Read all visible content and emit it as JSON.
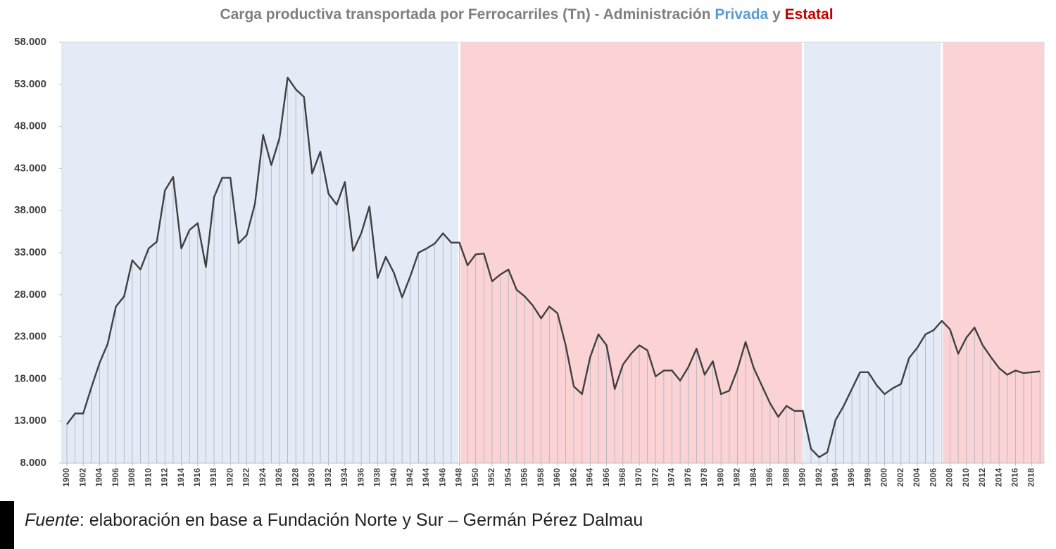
{
  "chart_data": {
    "type": "line",
    "title": [
      "Carga productiva transportada por Ferrocarriles (Tn) - Administración",
      "Privada",
      "y",
      "Estatal"
    ],
    "title_colors": [
      "#7f7f7f",
      "#5b9bd5",
      "#7f7f7f",
      "#c00000"
    ],
    "source": {
      "label": "Fuente",
      "text": ": elaboración en base a Fundación Norte y Sur – Germán Pérez Dalmau"
    },
    "x": [
      1900,
      1901,
      1902,
      1903,
      1904,
      1905,
      1906,
      1907,
      1908,
      1909,
      1910,
      1911,
      1912,
      1913,
      1914,
      1915,
      1916,
      1917,
      1918,
      1919,
      1920,
      1921,
      1922,
      1923,
      1924,
      1925,
      1926,
      1927,
      1928,
      1929,
      1930,
      1931,
      1932,
      1933,
      1934,
      1935,
      1936,
      1937,
      1938,
      1939,
      1940,
      1941,
      1942,
      1943,
      1944,
      1945,
      1946,
      1947,
      1948,
      1949,
      1950,
      1951,
      1952,
      1953,
      1954,
      1955,
      1956,
      1957,
      1958,
      1959,
      1960,
      1961,
      1962,
      1963,
      1964,
      1965,
      1966,
      1967,
      1968,
      1969,
      1970,
      1971,
      1972,
      1973,
      1974,
      1975,
      1976,
      1977,
      1978,
      1979,
      1980,
      1981,
      1982,
      1983,
      1984,
      1985,
      1986,
      1987,
      1988,
      1989,
      1990,
      1991,
      1992,
      1993,
      1994,
      1995,
      1996,
      1997,
      1998,
      1999,
      2000,
      2001,
      2002,
      2003,
      2004,
      2005,
      2006,
      2007,
      2008,
      2009,
      2010,
      2011,
      2012,
      2013,
      2014,
      2015,
      2016,
      2017,
      2018,
      2019
    ],
    "series": [
      {
        "name": "Carga",
        "color": "#404040",
        "values": [
          12600,
          13900,
          13900,
          17000,
          19900,
          22200,
          26600,
          27800,
          32100,
          31000,
          33500,
          34300,
          40400,
          42000,
          33500,
          35700,
          36500,
          31300,
          39600,
          41900,
          41900,
          34100,
          35100,
          38800,
          47000,
          43400,
          46600,
          53800,
          52400,
          51500,
          42400,
          45000,
          40000,
          38700,
          41400,
          33200,
          35300,
          38500,
          30000,
          32500,
          30600,
          27700,
          30200,
          33000,
          33500,
          34100,
          35300,
          34200,
          34200,
          31500,
          32800,
          32900,
          29600,
          30400,
          31000,
          28600,
          27800,
          26700,
          25200,
          26600,
          25800,
          22000,
          17100,
          16200,
          20600,
          23300,
          22000,
          16800,
          19700,
          21000,
          22000,
          21400,
          18300,
          19000,
          19000,
          17800,
          19400,
          21600,
          18500,
          20100,
          16200,
          16600,
          19100,
          22400,
          19300,
          17200,
          15100,
          13500,
          14800,
          14200,
          14200,
          9700,
          8700,
          9300,
          13100,
          14800,
          16800,
          18800,
          18800,
          17300,
          16200,
          16900,
          17400,
          20500,
          21700,
          23300,
          23800,
          24900,
          23900,
          21000,
          22900,
          24100,
          22000,
          20600,
          19300,
          18500,
          19000,
          18700,
          18800,
          18900
        ]
      }
    ],
    "xlim": [
      1899.4,
      2019.5
    ],
    "xticks": [
      1900,
      1902,
      1904,
      1906,
      1908,
      1910,
      1912,
      1914,
      1916,
      1918,
      1920,
      1922,
      1924,
      1926,
      1928,
      1930,
      1932,
      1934,
      1936,
      1938,
      1940,
      1942,
      1944,
      1946,
      1948,
      1950,
      1952,
      1954,
      1956,
      1958,
      1960,
      1962,
      1964,
      1966,
      1968,
      1970,
      1972,
      1974,
      1976,
      1978,
      1980,
      1982,
      1984,
      1986,
      1988,
      1990,
      1992,
      1994,
      1996,
      1998,
      2000,
      2002,
      2004,
      2006,
      2008,
      2010,
      2012,
      2014,
      2016,
      2018
    ],
    "ylim": [
      8000,
      58000
    ],
    "yticks": [
      {
        "value": 8000,
        "label": "8.000"
      },
      {
        "value": 13000,
        "label": "13.000"
      },
      {
        "value": 18000,
        "label": "18.000"
      },
      {
        "value": 23000,
        "label": "23.000"
      },
      {
        "value": 28000,
        "label": "28.000"
      },
      {
        "value": 33000,
        "label": "33.000"
      },
      {
        "value": 38000,
        "label": "38.000"
      },
      {
        "value": 43000,
        "label": "43.000"
      },
      {
        "value": 48000,
        "label": "48.000"
      },
      {
        "value": 53000,
        "label": "53.000"
      },
      {
        "value": 58000,
        "label": "58.000"
      }
    ],
    "regions": [
      {
        "start": 1899.4,
        "end": 1948,
        "color": "#e4ebf6"
      },
      {
        "start": 1948,
        "end": 1990,
        "color": "#fbd3d5"
      },
      {
        "start": 1990,
        "end": 2007,
        "color": "#e4ebf6"
      },
      {
        "start": 2007,
        "end": 2019.5,
        "color": "#fbd3d5"
      }
    ],
    "drop_lines": true
  }
}
